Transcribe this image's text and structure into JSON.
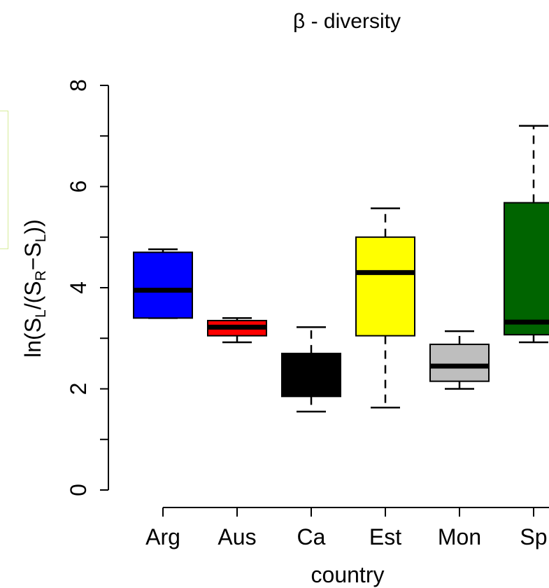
{
  "chart_data": {
    "type": "boxplot",
    "title": "β - diversity",
    "xlabel": "country",
    "ylabel_parts": {
      "prefix": "ln(S",
      "sub_l": "L",
      "mid": "/(S",
      "sub_r": "R",
      "minus": "−S",
      "sub_l2": "L",
      "suffix": "))"
    },
    "ylim": [
      0,
      8
    ],
    "yticks": [
      0,
      2,
      4,
      6,
      8
    ],
    "grid": false,
    "categories": [
      "Arg",
      "Aus",
      "Ca",
      "Est",
      "Mon",
      "Sp"
    ],
    "boxes": [
      {
        "name": "Arg",
        "min": 3.4,
        "q1": 3.4,
        "median": 3.95,
        "q3": 4.7,
        "max": 4.76,
        "color": "#0000ff"
      },
      {
        "name": "Aus",
        "min": 2.92,
        "q1": 3.05,
        "median": 3.22,
        "q3": 3.35,
        "max": 3.4,
        "color": "#ff0000"
      },
      {
        "name": "Ca",
        "min": 1.55,
        "q1": 1.85,
        "median": 2.2,
        "q3": 2.7,
        "max": 3.22,
        "color": "#000000"
      },
      {
        "name": "Est",
        "min": 1.63,
        "q1": 3.05,
        "median": 4.3,
        "q3": 5.0,
        "max": 5.57,
        "color": "#ffff00"
      },
      {
        "name": "Mon",
        "min": 2.0,
        "q1": 2.15,
        "median": 2.45,
        "q3": 2.88,
        "max": 3.14,
        "color": "#bebebe"
      },
      {
        "name": "Sp",
        "min": 2.92,
        "q1": 3.07,
        "median": 3.32,
        "q3": 5.68,
        "max": 7.2,
        "color": "#006400"
      }
    ]
  }
}
